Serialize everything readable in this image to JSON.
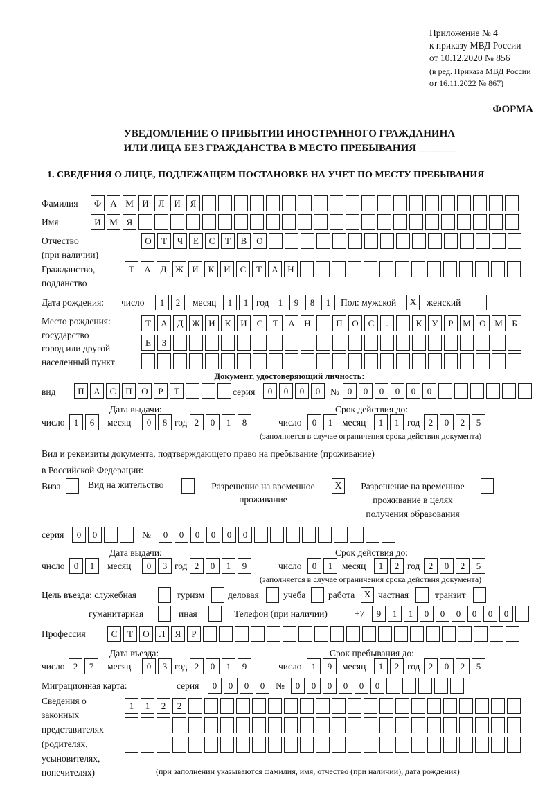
{
  "header": {
    "appendix": [
      "Приложение № 4",
      "к приказу МВД России",
      "от 10.12.2020 № 856"
    ],
    "edition": [
      "(в ред. Приказа МВД России",
      "от 16.11.2022 № 867)"
    ],
    "form_label": "ФОРМА",
    "title_line1": "УВЕДОМЛЕНИЕ О ПРИБЫТИИ ИНОСТРАННОГО ГРАЖДАНИНА",
    "title_line2": "ИЛИ ЛИЦА БЕЗ ГРАЖДАНСТВА В МЕСТО ПРЕБЫВАНИЯ _______",
    "section1": "1. СВЕДЕНИЯ О ЛИЦЕ, ПОДЛЕЖАЩЕМ ПОСТАНОВКЕ НА УЧЕТ ПО МЕСТУ ПРЕБЫВАНИЯ"
  },
  "labels": {
    "surname": "Фамилия",
    "name": "Имя",
    "patronymic": "Отчество",
    "patronymic2": "(при наличии)",
    "citizenship": "Гражданство,",
    "citizenship2": "подданство",
    "birth_date": "Дата рождения:",
    "day": "число",
    "month": "месяц",
    "year": "год",
    "sex": "Пол: мужской",
    "female": "женский",
    "birthplace": [
      "Место рождения:",
      "государство",
      "город или другой",
      "населенный пункт"
    ],
    "id_doc": "Документ, удостоверяющий личность:",
    "kind": "вид",
    "series": "серия",
    "number": "№",
    "issue_date": "Дата выдачи:",
    "valid_until": "Срок действия до:",
    "validity_note": "(заполняется в случае ограничения срока действия документа)",
    "residence_doc1": "Вид и реквизиты документа, подтверждающего право на пребывание (проживание)",
    "residence_doc2": "в Российской Федерации:",
    "visa": "Виза",
    "residence_permit": "Вид на жительство",
    "temp_permit": [
      "Разрешение на временное",
      "проживание"
    ],
    "temp_permit_edu": [
      "Разрешение на временное",
      "проживание в целях",
      "получения образования"
    ],
    "purpose": "Цель въезда: служебная",
    "tourism": "туризм",
    "business": "деловая",
    "study": "учеба",
    "work": "работа",
    "private": "частная",
    "transit": "транзит",
    "humanitarian": "гуманитарная",
    "other": "иная",
    "phone": "Телефон (при наличии)",
    "phone_prefix": "+7",
    "profession": "Профессия",
    "entry_date": "Дата въезда:",
    "stay_until": "Срок пребывания до:",
    "migration_card": "Миграционная карта:",
    "legal_reps": [
      "Сведения о",
      "законных",
      "представителях",
      "(родителях,",
      "усыновителях,",
      "попечителях)"
    ],
    "legal_reps_note": "(при заполнении указываются фамилия, имя, отчество (при наличии), дата рождения)"
  },
  "fields": {
    "surname": [
      "Ф",
      "А",
      "М",
      "И",
      "Л",
      "И",
      "Я",
      "",
      "",
      "",
      "",
      "",
      "",
      "",
      "",
      "",
      "",
      "",
      "",
      "",
      "",
      "",
      "",
      "",
      "",
      "",
      ""
    ],
    "name": [
      "И",
      "М",
      "Я",
      "",
      "",
      "",
      "",
      "",
      "",
      "",
      "",
      "",
      "",
      "",
      "",
      "",
      "",
      "",
      "",
      "",
      "",
      "",
      "",
      "",
      "",
      "",
      ""
    ],
    "patronymic": [
      "О",
      "Т",
      "Ч",
      "Е",
      "С",
      "Т",
      "В",
      "О",
      "",
      "",
      "",
      "",
      "",
      "",
      "",
      "",
      "",
      "",
      "",
      "",
      "",
      "",
      "",
      ""
    ],
    "citizenship": [
      "Т",
      "А",
      "Д",
      "Ж",
      "И",
      "К",
      "И",
      "С",
      "Т",
      "А",
      "Н",
      "",
      "",
      "",
      "",
      "",
      "",
      "",
      "",
      "",
      "",
      "",
      "",
      "",
      ""
    ],
    "birth_day": [
      "1",
      "2"
    ],
    "birth_month": [
      "1",
      "1"
    ],
    "birth_year": [
      "1",
      "9",
      "8",
      "1"
    ],
    "sex_male": "X",
    "sex_female": "",
    "birthplace1": [
      "Т",
      "А",
      "Д",
      "Ж",
      "И",
      "К",
      "И",
      "С",
      "Т",
      "А",
      "Н",
      "",
      "П",
      "О",
      "С",
      ".",
      "",
      "К",
      "У",
      "Р",
      "М",
      "О",
      "М",
      "Б"
    ],
    "birthplace2": [
      "Е",
      "З",
      "",
      "",
      "",
      "",
      "",
      "",
      "",
      "",
      "",
      "",
      "",
      "",
      "",
      "",
      "",
      "",
      "",
      "",
      "",
      "",
      "",
      ""
    ],
    "birthplace3": [
      "",
      "",
      "",
      "",
      "",
      "",
      "",
      "",
      "",
      "",
      "",
      "",
      "",
      "",
      "",
      "",
      "",
      "",
      "",
      "",
      "",
      "",
      "",
      ""
    ],
    "id_kind": [
      "П",
      "А",
      "С",
      "П",
      "О",
      "Р",
      "Т",
      "",
      "",
      ""
    ],
    "id_series": [
      "0",
      "0",
      "0",
      "0"
    ],
    "id_number": [
      "0",
      "0",
      "0",
      "0",
      "0",
      "0",
      "",
      "",
      "",
      "",
      "",
      ""
    ],
    "id_issue_day": [
      "1",
      "6"
    ],
    "id_issue_month": [
      "0",
      "8"
    ],
    "id_issue_year": [
      "2",
      "0",
      "1",
      "8"
    ],
    "id_valid_day": [
      "0",
      "1"
    ],
    "id_valid_month": [
      "1",
      "1"
    ],
    "id_valid_year": [
      "2",
      "0",
      "2",
      "5"
    ],
    "visa": "",
    "residence_permit": "",
    "temp_permit": "X",
    "temp_permit_edu": "",
    "res_series": [
      "0",
      "0",
      "",
      ""
    ],
    "res_number": [
      "0",
      "0",
      "0",
      "0",
      "0",
      "0",
      "",
      "",
      "",
      "",
      "",
      "",
      "",
      "",
      ""
    ],
    "res_issue_day": [
      "0",
      "1"
    ],
    "res_issue_month": [
      "0",
      "3"
    ],
    "res_issue_year": [
      "2",
      "0",
      "1",
      "9"
    ],
    "res_valid_day": [
      "0",
      "1"
    ],
    "res_valid_month": [
      "1",
      "2"
    ],
    "res_valid_year": [
      "2",
      "0",
      "2",
      "5"
    ],
    "purpose_service": "",
    "purpose_tourism": "",
    "purpose_business": "",
    "purpose_study": "",
    "purpose_work": "X",
    "purpose_private": "",
    "purpose_transit": "",
    "purpose_humanitarian": "",
    "purpose_other": "",
    "phone": [
      "9",
      "1",
      "1",
      "0",
      "0",
      "0",
      "0",
      "0",
      "0",
      ""
    ],
    "profession": [
      "С",
      "Т",
      "О",
      "Л",
      "Я",
      "Р",
      "",
      "",
      "",
      "",
      "",
      "",
      "",
      "",
      "",
      "",
      "",
      "",
      "",
      "",
      "",
      "",
      "",
      "",
      "",
      ""
    ],
    "entry_day": [
      "2",
      "7"
    ],
    "entry_month": [
      "0",
      "3"
    ],
    "entry_year": [
      "2",
      "0",
      "1",
      "9"
    ],
    "stay_day": [
      "1",
      "9"
    ],
    "stay_month": [
      "1",
      "2"
    ],
    "stay_year": [
      "2",
      "0",
      "2",
      "5"
    ],
    "mig_series": [
      "0",
      "0",
      "0",
      "0"
    ],
    "mig_number": [
      "0",
      "0",
      "0",
      "0",
      "0",
      "0",
      "",
      "",
      "",
      "",
      ""
    ],
    "legal1": [
      "1",
      "1",
      "2",
      "2",
      "",
      "",
      "",
      "",
      "",
      "",
      "",
      "",
      "",
      "",
      "",
      "",
      "",
      "",
      "",
      "",
      "",
      "",
      "",
      "",
      ""
    ],
    "legal2": [
      "",
      "",
      "",
      "",
      "",
      "",
      "",
      "",
      "",
      "",
      "",
      "",
      "",
      "",
      "",
      "",
      "",
      "",
      "",
      "",
      "",
      "",
      "",
      "",
      ""
    ],
    "legal3": [
      "",
      "",
      "",
      "",
      "",
      "",
      "",
      "",
      "",
      "",
      "",
      "",
      "",
      "",
      "",
      "",
      "",
      "",
      "",
      "",
      "",
      "",
      "",
      "",
      ""
    ]
  }
}
